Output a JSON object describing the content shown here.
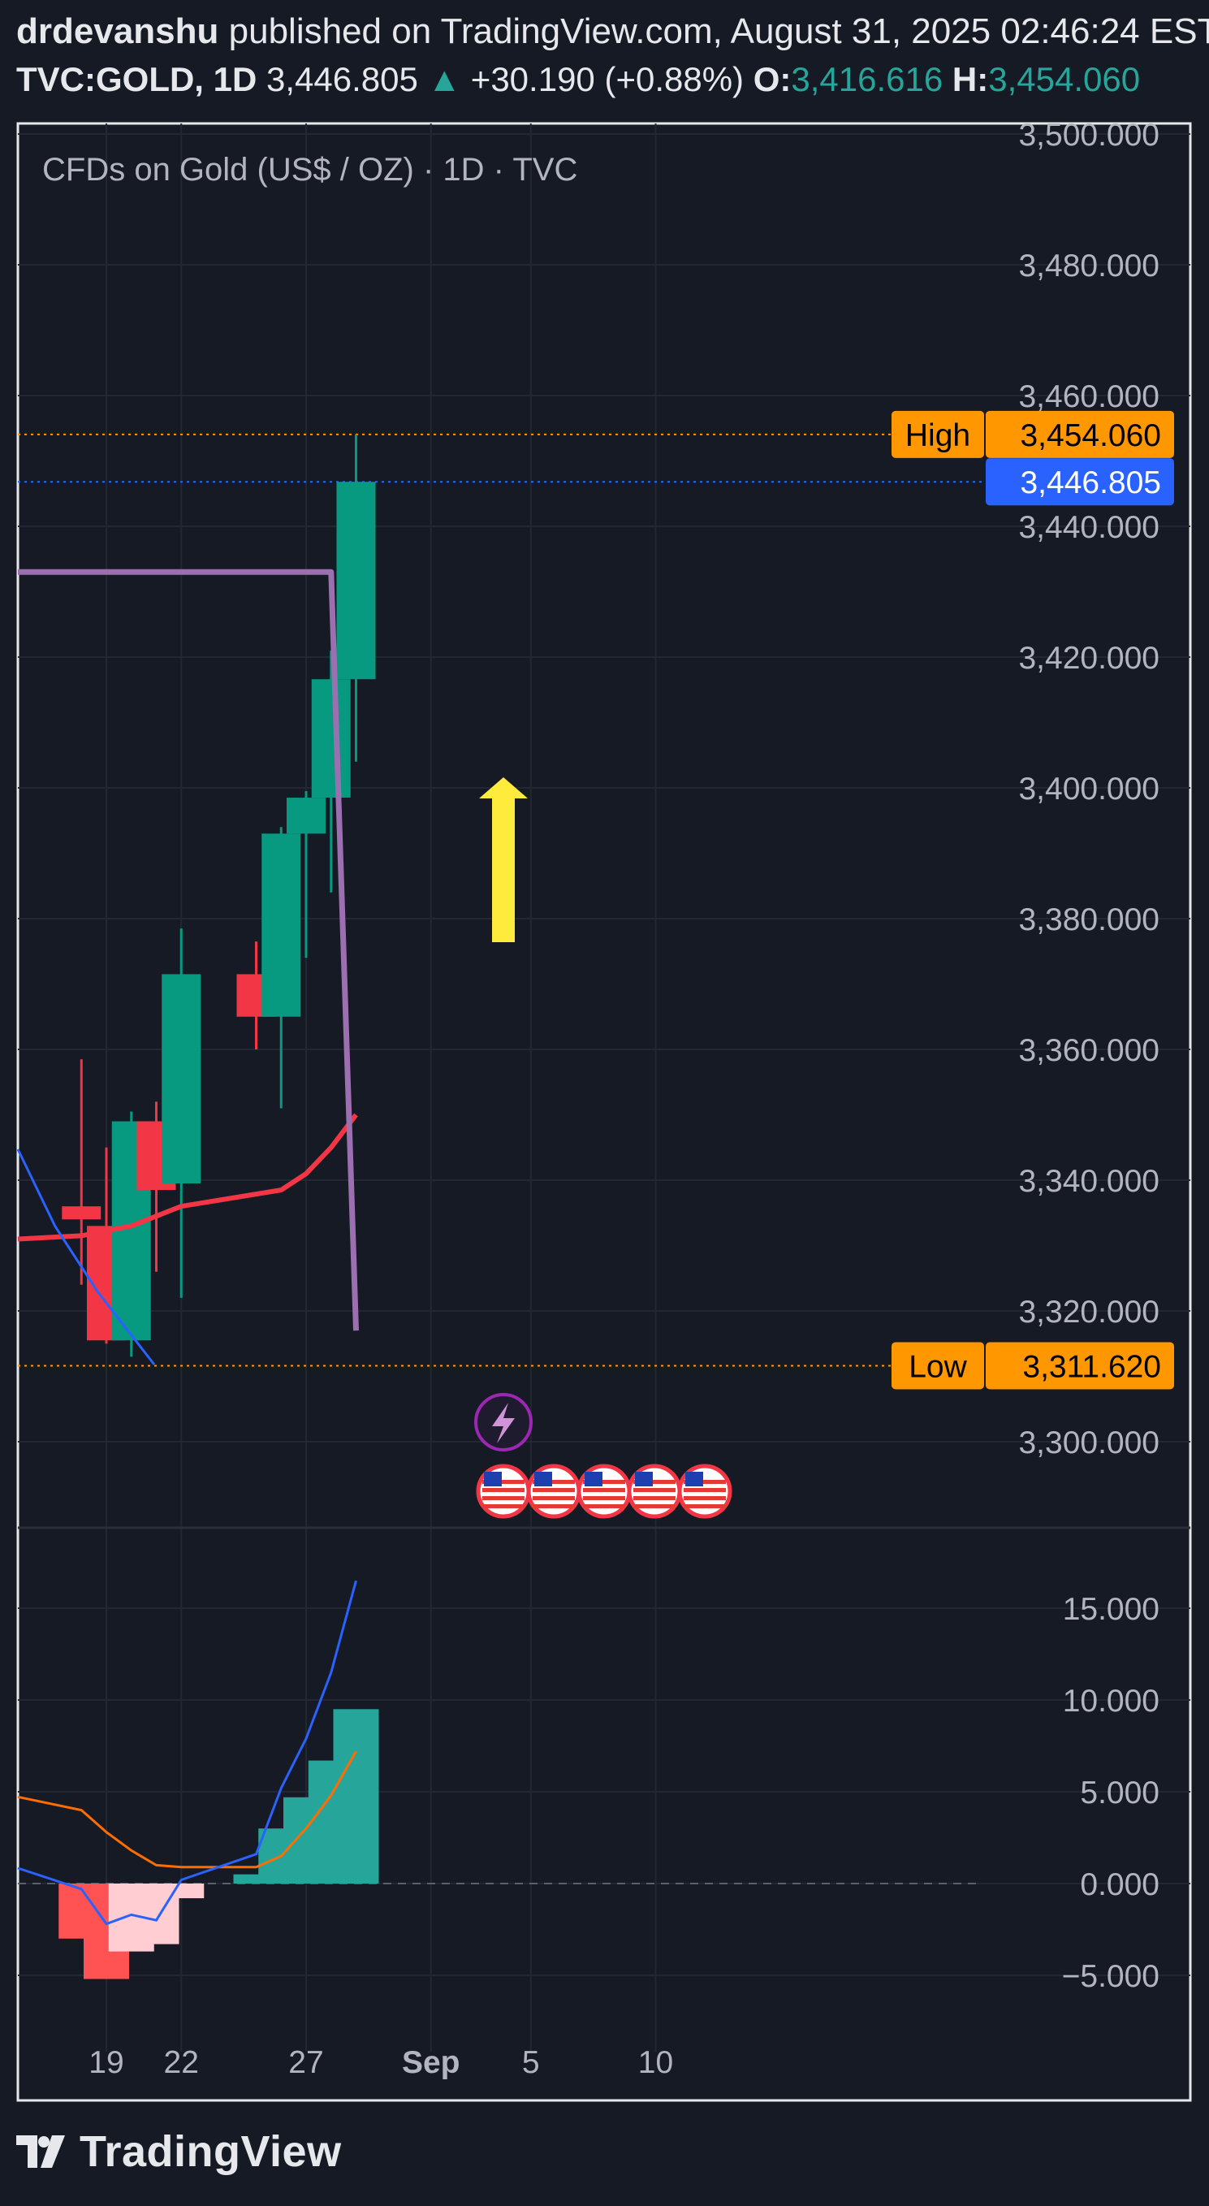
{
  "header": {
    "author": "drdevanshu",
    "published_text": "published on TradingView.com, August 31, 2025 02:46:24 EST",
    "symbol": "TVC:GOLD, 1D",
    "last": "3,446.805",
    "change_arrow": "▲",
    "change": "+30.190 (+0.88%)",
    "open_label": "O:",
    "open": "3,416.616",
    "high_label": "H:",
    "high": "3,454.060"
  },
  "legend_title": "CFDs on Gold (US$ / OZ) · 1D · TVC",
  "footer": {
    "brand": "TradingView"
  },
  "colors": {
    "background": "#161a25",
    "up": "#089981",
    "down": "#f23645",
    "price_label": "#2962ff",
    "high_low_label": "#ff9800",
    "ma_red": "#f23645",
    "purple_line": "#9c6fb0",
    "arrow": "#ffeb3b",
    "macd_line": "#2962ff",
    "signal_line": "#ff6d00"
  },
  "chart_data": [
    {
      "type": "candlestick",
      "title": "CFDs on Gold (US$ / OZ) · 1D · TVC",
      "x_ticks": [
        "19",
        "22",
        "27",
        "Sep",
        "5",
        "10"
      ],
      "y_ticks": [
        "3,300.000",
        "3,320.000",
        "3,340.000",
        "3,360.000",
        "3,380.000",
        "3,400.000",
        "3,420.000",
        "3,440.000",
        "3,460.000",
        "3,480.000",
        "3,500.000"
      ],
      "ylim": [
        3288,
        3500
      ],
      "candles": [
        {
          "date": "2025-08-18",
          "open": 3336.0,
          "high": 3358.5,
          "low": 3324.0,
          "close": 3334.0
        },
        {
          "date": "2025-08-19",
          "open": 3333.0,
          "high": 3345.0,
          "low": 3315.0,
          "close": 3315.5
        },
        {
          "date": "2025-08-20",
          "open": 3315.5,
          "high": 3350.5,
          "low": 3313.0,
          "close": 3349.0
        },
        {
          "date": "2025-08-21",
          "open": 3349.0,
          "high": 3352.0,
          "low": 3326.0,
          "close": 3338.5
        },
        {
          "date": "2025-08-22",
          "open": 3339.5,
          "high": 3378.5,
          "low": 3322.0,
          "close": 3371.5
        },
        {
          "date": "2025-08-25",
          "open": 3371.5,
          "high": 3376.5,
          "low": 3360.0,
          "close": 3365.0
        },
        {
          "date": "2025-08-26",
          "open": 3365.0,
          "high": 3394.0,
          "low": 3351.0,
          "close": 3393.0
        },
        {
          "date": "2025-08-27",
          "open": 3393.0,
          "high": 3399.5,
          "low": 3374.0,
          "close": 3398.5
        },
        {
          "date": "2025-08-28",
          "open": 3398.5,
          "high": 3421.0,
          "low": 3384.0,
          "close": 3416.616
        },
        {
          "date": "2025-08-29",
          "open": 3416.616,
          "high": 3454.06,
          "low": 3404.0,
          "close": 3446.805
        }
      ],
      "moving_average": [
        {
          "date": "2025-08-18",
          "value": 3331.5
        },
        {
          "date": "2025-08-20",
          "value": 3333.0
        },
        {
          "date": "2025-08-22",
          "value": 3336.0
        },
        {
          "date": "2025-08-26",
          "value": 3338.5
        },
        {
          "date": "2025-08-27",
          "value": 3341.0
        },
        {
          "date": "2025-08-28",
          "value": 3345.0
        },
        {
          "date": "2025-08-29",
          "value": 3350.0
        }
      ],
      "purple_line": [
        {
          "date": "2025-08-28",
          "value": 3433.0
        },
        {
          "date": "2025-08-29",
          "value": 3317.0
        }
      ],
      "price_lines": [
        {
          "label": "High",
          "value": 3454.06,
          "value_text": "3,454.060"
        },
        {
          "label": "",
          "value": 3446.805,
          "value_text": "3,446.805"
        },
        {
          "label": "Low",
          "value": 3311.62,
          "value_text": "3,311.620"
        }
      ]
    },
    {
      "type": "bar",
      "subtype": "macd_histogram",
      "y_ticks": [
        "−5.000",
        "0.000",
        "5.000",
        "10.000",
        "15.000"
      ],
      "ylim": [
        -7,
        18
      ],
      "histogram": [
        {
          "date": "2025-08-18",
          "value": -3.0
        },
        {
          "date": "2025-08-19",
          "value": -5.2
        },
        {
          "date": "2025-08-20",
          "value": -3.7
        },
        {
          "date": "2025-08-21",
          "value": -3.3
        },
        {
          "date": "2025-08-22",
          "value": -0.8
        },
        {
          "date": "2025-08-25",
          "value": 0.5
        },
        {
          "date": "2025-08-26",
          "value": 3.0
        },
        {
          "date": "2025-08-27",
          "value": 4.7
        },
        {
          "date": "2025-08-28",
          "value": 6.7
        },
        {
          "date": "2025-08-29",
          "value": 9.5
        }
      ],
      "macd": [
        -0.3,
        -2.2,
        -1.7,
        -2.0,
        0.2,
        1.6,
        5.2,
        7.9,
        11.5,
        16.5
      ],
      "signal": [
        4.0,
        2.8,
        1.8,
        1.0,
        0.9,
        0.9,
        1.5,
        3.0,
        4.8,
        7.2
      ]
    }
  ]
}
